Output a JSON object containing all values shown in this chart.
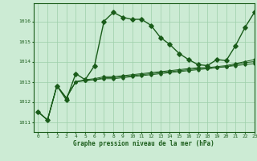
{
  "title": "Graphe pression niveau de la mer (hPa)",
  "background_color": "#ccebd4",
  "grid_color": "#9ecfaa",
  "line_color": "#1a5c1a",
  "marker_color": "#1a5c1a",
  "xlim": [
    -0.5,
    23
  ],
  "ylim": [
    1010.5,
    1016.9
  ],
  "yticks": [
    1011,
    1012,
    1013,
    1014,
    1015,
    1016
  ],
  "xticks": [
    0,
    1,
    2,
    3,
    4,
    5,
    6,
    7,
    8,
    9,
    10,
    11,
    12,
    13,
    14,
    15,
    16,
    17,
    18,
    19,
    20,
    21,
    22,
    23
  ],
  "series": [
    [
      1011.5,
      1011.1,
      1012.8,
      1012.1,
      1013.4,
      1013.1,
      1013.8,
      1016.0,
      1016.45,
      1016.2,
      1016.1,
      1016.1,
      1015.8,
      1015.2,
      1014.85,
      1014.4,
      1014.1,
      1013.85,
      1013.8,
      1014.1,
      1014.05,
      1014.8,
      1015.7,
      1016.45
    ],
    [
      1011.5,
      1011.1,
      1012.8,
      1012.2,
      1013.0,
      1013.05,
      1013.1,
      1013.15,
      1013.15,
      1013.2,
      1013.25,
      1013.3,
      1013.35,
      1013.4,
      1013.45,
      1013.5,
      1013.55,
      1013.6,
      1013.65,
      1013.7,
      1013.75,
      1013.8,
      1013.85,
      1013.9
    ],
    [
      1011.5,
      1011.1,
      1012.8,
      1012.2,
      1013.0,
      1013.05,
      1013.1,
      1013.2,
      1013.2,
      1013.25,
      1013.3,
      1013.35,
      1013.4,
      1013.45,
      1013.5,
      1013.55,
      1013.6,
      1013.65,
      1013.65,
      1013.7,
      1013.75,
      1013.85,
      1013.95,
      1014.0
    ],
    [
      1011.5,
      1011.1,
      1012.8,
      1012.2,
      1013.0,
      1013.1,
      1013.15,
      1013.25,
      1013.25,
      1013.3,
      1013.35,
      1013.4,
      1013.45,
      1013.5,
      1013.55,
      1013.6,
      1013.65,
      1013.7,
      1013.7,
      1013.75,
      1013.8,
      1013.9,
      1014.0,
      1014.1
    ]
  ],
  "figsize": [
    3.2,
    2.0
  ],
  "dpi": 100
}
